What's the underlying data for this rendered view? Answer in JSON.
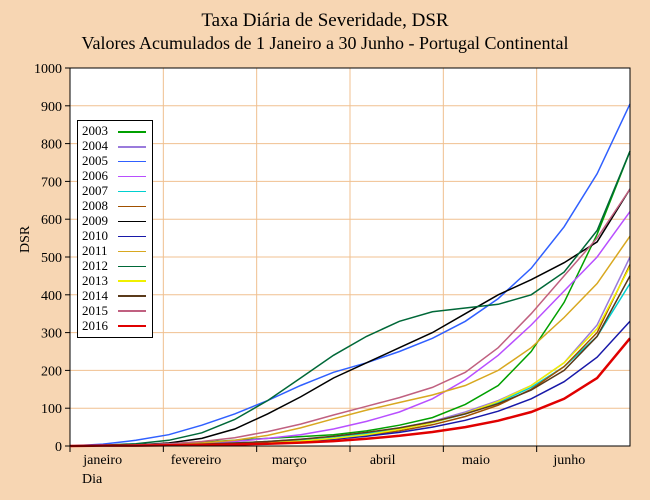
{
  "title_main": "Taxa Diária de Severidade, DSR",
  "title_sub": "Valores Acumulados de 1 Janeiro a 30 Junho - Portugal Continental",
  "ylabel": "DSR",
  "xlabel": "Dia",
  "chart": {
    "type": "line",
    "background_color": "#f7d6b3",
    "plot_bg": "#ffffff",
    "grid_color": "#f0c090",
    "axis_color": "#000000",
    "ylim": [
      0,
      1000
    ],
    "ytick_step": 100,
    "x_categories": [
      "janeiro",
      "fevereiro",
      "março",
      "abril",
      "maio",
      "junho"
    ],
    "legend_position": "upper-left",
    "line_width": 1.5,
    "aspect_w": 650,
    "aspect_h": 500,
    "series": [
      {
        "name": "2003",
        "color": "#00a000",
        "width": 1.5,
        "pts": [
          0,
          2,
          4,
          6,
          10,
          15,
          20,
          25,
          30,
          40,
          55,
          75,
          110,
          160,
          250,
          380,
          560,
          780
        ]
      },
      {
        "name": "2004",
        "color": "#9a7bdc",
        "width": 1.5,
        "pts": [
          0,
          1,
          2,
          3,
          5,
          8,
          12,
          18,
          25,
          35,
          48,
          65,
          90,
          120,
          160,
          220,
          320,
          500
        ]
      },
      {
        "name": "2005",
        "color": "#3060ff",
        "width": 1.5,
        "pts": [
          0,
          5,
          15,
          30,
          55,
          85,
          120,
          160,
          195,
          220,
          250,
          285,
          330,
          390,
          470,
          580,
          720,
          905
        ]
      },
      {
        "name": "2006",
        "color": "#b84fff",
        "width": 1.5,
        "pts": [
          0,
          1,
          2,
          4,
          7,
          12,
          20,
          30,
          45,
          65,
          90,
          125,
          175,
          240,
          320,
          410,
          500,
          620
        ]
      },
      {
        "name": "2007",
        "color": "#00d0d0",
        "width": 1.5,
        "pts": [
          0,
          1,
          2,
          3,
          5,
          8,
          12,
          17,
          24,
          33,
          45,
          62,
          85,
          115,
          155,
          210,
          290,
          430
        ]
      },
      {
        "name": "2008",
        "color": "#a05000",
        "width": 1.5,
        "pts": [
          0,
          1,
          2,
          3,
          4,
          6,
          9,
          13,
          19,
          28,
          40,
          56,
          78,
          108,
          150,
          210,
          300,
          480
        ]
      },
      {
        "name": "2009",
        "color": "#000000",
        "width": 1.5,
        "pts": [
          0,
          1,
          3,
          8,
          20,
          45,
          85,
          130,
          180,
          220,
          260,
          300,
          350,
          400,
          440,
          485,
          540,
          680
        ]
      },
      {
        "name": "2010",
        "color": "#1818a8",
        "width": 1.5,
        "pts": [
          0,
          1,
          1,
          2,
          3,
          5,
          8,
          12,
          18,
          26,
          36,
          50,
          68,
          92,
          125,
          170,
          235,
          330
        ]
      },
      {
        "name": "2011",
        "color": "#d8a820",
        "width": 1.5,
        "pts": [
          0,
          1,
          2,
          4,
          8,
          15,
          28,
          48,
          72,
          95,
          115,
          135,
          160,
          200,
          260,
          340,
          430,
          555
        ]
      },
      {
        "name": "2012",
        "color": "#006838",
        "width": 1.5,
        "pts": [
          0,
          2,
          6,
          15,
          35,
          70,
          120,
          180,
          240,
          290,
          330,
          355,
          365,
          375,
          400,
          460,
          570,
          780
        ]
      },
      {
        "name": "2013",
        "color": "#f0f000",
        "width": 1.5,
        "pts": [
          0,
          1,
          1,
          2,
          3,
          5,
          8,
          13,
          20,
          30,
          44,
          62,
          86,
          118,
          160,
          220,
          310,
          475
        ]
      },
      {
        "name": "2014",
        "color": "#5a3a1a",
        "width": 1.5,
        "pts": [
          0,
          1,
          2,
          3,
          5,
          8,
          12,
          18,
          26,
          36,
          48,
          64,
          85,
          112,
          148,
          200,
          290,
          450
        ]
      },
      {
        "name": "2015",
        "color": "#c06080",
        "width": 1.5,
        "pts": [
          0,
          1,
          3,
          6,
          12,
          22,
          38,
          58,
          82,
          105,
          128,
          155,
          195,
          260,
          350,
          450,
          550,
          680
        ]
      },
      {
        "name": "2016",
        "color": "#e00000",
        "width": 2.5,
        "pts": [
          0,
          1,
          1,
          2,
          3,
          4,
          6,
          9,
          13,
          19,
          27,
          37,
          50,
          67,
          90,
          125,
          180,
          285
        ]
      }
    ]
  }
}
